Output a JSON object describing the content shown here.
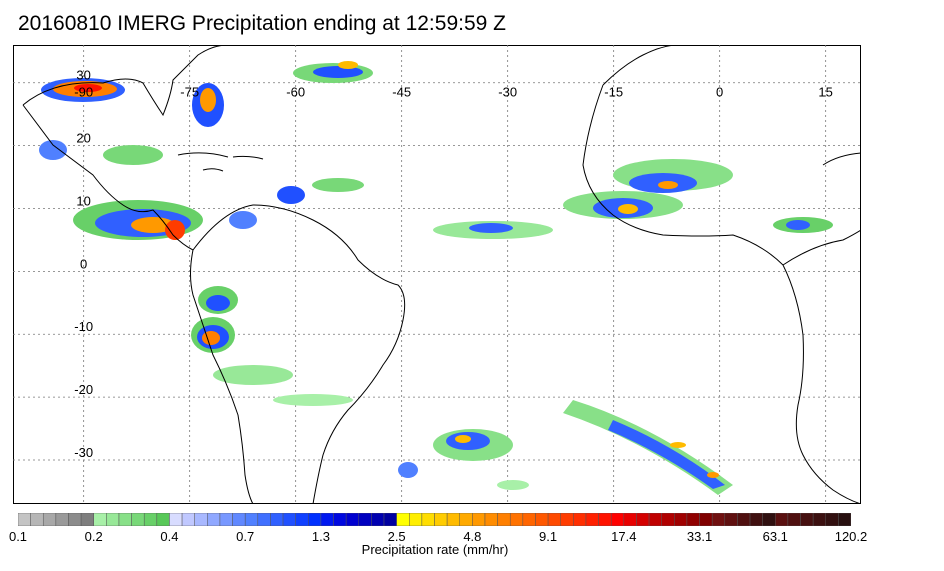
{
  "title": "20160810 IMERG Precipitation ending at 12:59:59 Z",
  "map": {
    "lon_labels": [
      "-90",
      "-75",
      "-60",
      "-45",
      "-30",
      "-15",
      "0",
      "15"
    ],
    "lat_labels": [
      "30",
      "20",
      "10",
      "0",
      "-10",
      "-20",
      "-30"
    ],
    "lon_range": [
      -100,
      20
    ],
    "lat_range": [
      -37,
      36
    ],
    "grid": "dotted",
    "coastline_color": "#000000"
  },
  "colorbar": {
    "title": "Precipitation rate (mm/hr)",
    "tick_labels": [
      "0.1",
      "0.2",
      "0.4",
      "0.7",
      "1.3",
      "2.5",
      "4.8",
      "9.1",
      "17.4",
      "33.1",
      "63.1",
      "120.2"
    ],
    "colors": [
      "#c4c4c4",
      "#b6b6b6",
      "#a8a8a8",
      "#9a9a9a",
      "#8c8c8c",
      "#7e7e7e",
      "#a8f0a8",
      "#98e898",
      "#88e088",
      "#78d878",
      "#68d068",
      "#58c858",
      "#d8dcff",
      "#c0c8ff",
      "#a8b8ff",
      "#90a8ff",
      "#7898ff",
      "#6088ff",
      "#5080ff",
      "#4070ff",
      "#3060ff",
      "#2050ff",
      "#1040ff",
      "#0030ff",
      "#0018f0",
      "#0008e0",
      "#0000d0",
      "#0000c0",
      "#0000b0",
      "#0000a0",
      "#ffff00",
      "#ffee00",
      "#ffdd00",
      "#ffcc00",
      "#ffbb00",
      "#ffaa00",
      "#ff9900",
      "#ff8c00",
      "#ff7f00",
      "#ff7200",
      "#ff6500",
      "#ff5800",
      "#ff4a00",
      "#ff3c00",
      "#ff2e00",
      "#ff2000",
      "#ff1200",
      "#ff0000",
      "#e80000",
      "#d40000",
      "#c00000",
      "#b00000",
      "#a00000",
      "#900000",
      "#800000",
      "#701010",
      "#601010",
      "#501010",
      "#401010",
      "#301010",
      "#5a1010",
      "#501010",
      "#461010",
      "#3c1010",
      "#321010",
      "#281010"
    ]
  }
}
